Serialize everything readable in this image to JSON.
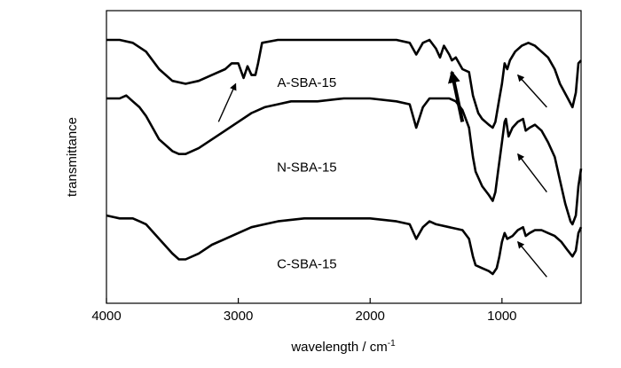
{
  "chart_data": {
    "type": "line",
    "xlabel": "wavelength / cm",
    "xlabel_sup": "-1",
    "ylabel": "transmittance",
    "xlim": [
      4000,
      400
    ],
    "ylim": [
      0,
      100
    ],
    "x_ticks": [
      {
        "value": 4000,
        "label": "4000"
      },
      {
        "value": 3000,
        "label": "3000"
      },
      {
        "value": 2000,
        "label": "2000"
      },
      {
        "value": 1000,
        "label": "1000"
      }
    ],
    "y_ticks_shown": false,
    "grid": false,
    "series": [
      {
        "name": "A-SBA-15",
        "points": [
          [
            4000,
            90
          ],
          [
            3900,
            90
          ],
          [
            3800,
            89
          ],
          [
            3700,
            86
          ],
          [
            3600,
            80
          ],
          [
            3500,
            76
          ],
          [
            3400,
            75
          ],
          [
            3300,
            76
          ],
          [
            3200,
            78
          ],
          [
            3100,
            80
          ],
          [
            3050,
            82
          ],
          [
            3000,
            82
          ],
          [
            2960,
            77
          ],
          [
            2930,
            81
          ],
          [
            2900,
            78
          ],
          [
            2870,
            78
          ],
          [
            2850,
            82
          ],
          [
            2820,
            89
          ],
          [
            2700,
            90
          ],
          [
            2500,
            90
          ],
          [
            2200,
            90
          ],
          [
            2000,
            90
          ],
          [
            1800,
            90
          ],
          [
            1700,
            89
          ],
          [
            1650,
            85
          ],
          [
            1600,
            89
          ],
          [
            1550,
            90
          ],
          [
            1500,
            87
          ],
          [
            1470,
            84
          ],
          [
            1440,
            88
          ],
          [
            1400,
            85
          ],
          [
            1380,
            83
          ],
          [
            1350,
            84
          ],
          [
            1300,
            80
          ],
          [
            1250,
            79
          ],
          [
            1220,
            71
          ],
          [
            1180,
            65
          ],
          [
            1150,
            63
          ],
          [
            1100,
            61
          ],
          [
            1070,
            60
          ],
          [
            1050,
            62
          ],
          [
            1020,
            70
          ],
          [
            1000,
            75
          ],
          [
            980,
            82
          ],
          [
            960,
            80
          ],
          [
            940,
            83
          ],
          [
            900,
            86
          ],
          [
            850,
            88
          ],
          [
            800,
            89
          ],
          [
            750,
            88
          ],
          [
            700,
            86
          ],
          [
            650,
            84
          ],
          [
            600,
            80
          ],
          [
            560,
            75
          ],
          [
            500,
            70
          ],
          [
            465,
            67
          ],
          [
            440,
            72
          ],
          [
            420,
            82
          ],
          [
            400,
            83
          ]
        ]
      },
      {
        "name": "N-SBA-15",
        "points": [
          [
            4000,
            70
          ],
          [
            3900,
            70
          ],
          [
            3850,
            71
          ],
          [
            3800,
            69
          ],
          [
            3750,
            67
          ],
          [
            3700,
            64
          ],
          [
            3600,
            56
          ],
          [
            3500,
            52
          ],
          [
            3450,
            51
          ],
          [
            3400,
            51
          ],
          [
            3300,
            53
          ],
          [
            3200,
            56
          ],
          [
            3100,
            59
          ],
          [
            3000,
            62
          ],
          [
            2900,
            65
          ],
          [
            2800,
            67
          ],
          [
            2700,
            68
          ],
          [
            2600,
            69
          ],
          [
            2400,
            69
          ],
          [
            2200,
            70
          ],
          [
            2000,
            70
          ],
          [
            1800,
            69
          ],
          [
            1700,
            68
          ],
          [
            1650,
            60
          ],
          [
            1600,
            67
          ],
          [
            1550,
            70
          ],
          [
            1500,
            70
          ],
          [
            1450,
            70
          ],
          [
            1400,
            70
          ],
          [
            1350,
            69
          ],
          [
            1300,
            66
          ],
          [
            1250,
            60
          ],
          [
            1220,
            50
          ],
          [
            1200,
            45
          ],
          [
            1150,
            40
          ],
          [
            1100,
            37
          ],
          [
            1070,
            35
          ],
          [
            1050,
            38
          ],
          [
            1030,
            45
          ],
          [
            1000,
            55
          ],
          [
            980,
            62
          ],
          [
            970,
            63
          ],
          [
            950,
            57
          ],
          [
            920,
            60
          ],
          [
            880,
            62
          ],
          [
            840,
            63
          ],
          [
            820,
            59
          ],
          [
            790,
            60
          ],
          [
            750,
            61
          ],
          [
            700,
            59
          ],
          [
            650,
            55
          ],
          [
            600,
            50
          ],
          [
            560,
            42
          ],
          [
            520,
            34
          ],
          [
            480,
            28
          ],
          [
            465,
            27
          ],
          [
            440,
            30
          ],
          [
            420,
            40
          ],
          [
            400,
            46
          ]
        ]
      },
      {
        "name": "C-SBA-15",
        "points": [
          [
            4000,
            30
          ],
          [
            3900,
            29
          ],
          [
            3800,
            29
          ],
          [
            3750,
            28
          ],
          [
            3700,
            27
          ],
          [
            3600,
            22
          ],
          [
            3500,
            17
          ],
          [
            3450,
            15
          ],
          [
            3400,
            15
          ],
          [
            3300,
            17
          ],
          [
            3200,
            20
          ],
          [
            3100,
            22
          ],
          [
            3000,
            24
          ],
          [
            2900,
            26
          ],
          [
            2800,
            27
          ],
          [
            2700,
            28
          ],
          [
            2500,
            29
          ],
          [
            2200,
            29
          ],
          [
            2000,
            29
          ],
          [
            1800,
            28
          ],
          [
            1700,
            27
          ],
          [
            1650,
            22
          ],
          [
            1600,
            26
          ],
          [
            1550,
            28
          ],
          [
            1500,
            27
          ],
          [
            1400,
            26
          ],
          [
            1300,
            25
          ],
          [
            1250,
            22
          ],
          [
            1220,
            16
          ],
          [
            1200,
            13
          ],
          [
            1150,
            12
          ],
          [
            1100,
            11
          ],
          [
            1070,
            10
          ],
          [
            1040,
            12
          ],
          [
            1020,
            16
          ],
          [
            1000,
            21
          ],
          [
            980,
            24
          ],
          [
            960,
            22
          ],
          [
            920,
            23
          ],
          [
            880,
            25
          ],
          [
            840,
            26
          ],
          [
            820,
            23
          ],
          [
            790,
            24
          ],
          [
            750,
            25
          ],
          [
            700,
            25
          ],
          [
            650,
            24
          ],
          [
            600,
            23
          ],
          [
            550,
            21
          ],
          [
            500,
            18
          ],
          [
            465,
            16
          ],
          [
            440,
            18
          ],
          [
            420,
            24
          ],
          [
            400,
            26
          ]
        ]
      }
    ],
    "series_labels": [
      {
        "series": "A-SBA-15",
        "text": "A-SBA-15",
        "x": 2480,
        "y": 74
      },
      {
        "series": "N-SBA-15",
        "text": "N-SBA-15",
        "x": 2480,
        "y": 45
      },
      {
        "series": "C-SBA-15",
        "text": "C-SBA-15",
        "x": 2480,
        "y": 12
      }
    ],
    "annotations": [
      {
        "type": "arrow",
        "from": [
          3150,
          62
        ],
        "to": [
          3020,
          75
        ],
        "bold": false
      },
      {
        "type": "arrow",
        "from": [
          1300,
          62
        ],
        "to": [
          1380,
          79
        ],
        "bold": true
      },
      {
        "type": "arrow",
        "from": [
          660,
          67
        ],
        "to": [
          880,
          78
        ],
        "bold": false
      },
      {
        "type": "arrow",
        "from": [
          660,
          38
        ],
        "to": [
          880,
          51
        ],
        "bold": false
      },
      {
        "type": "arrow",
        "from": [
          660,
          9
        ],
        "to": [
          880,
          21
        ],
        "bold": false
      }
    ]
  }
}
